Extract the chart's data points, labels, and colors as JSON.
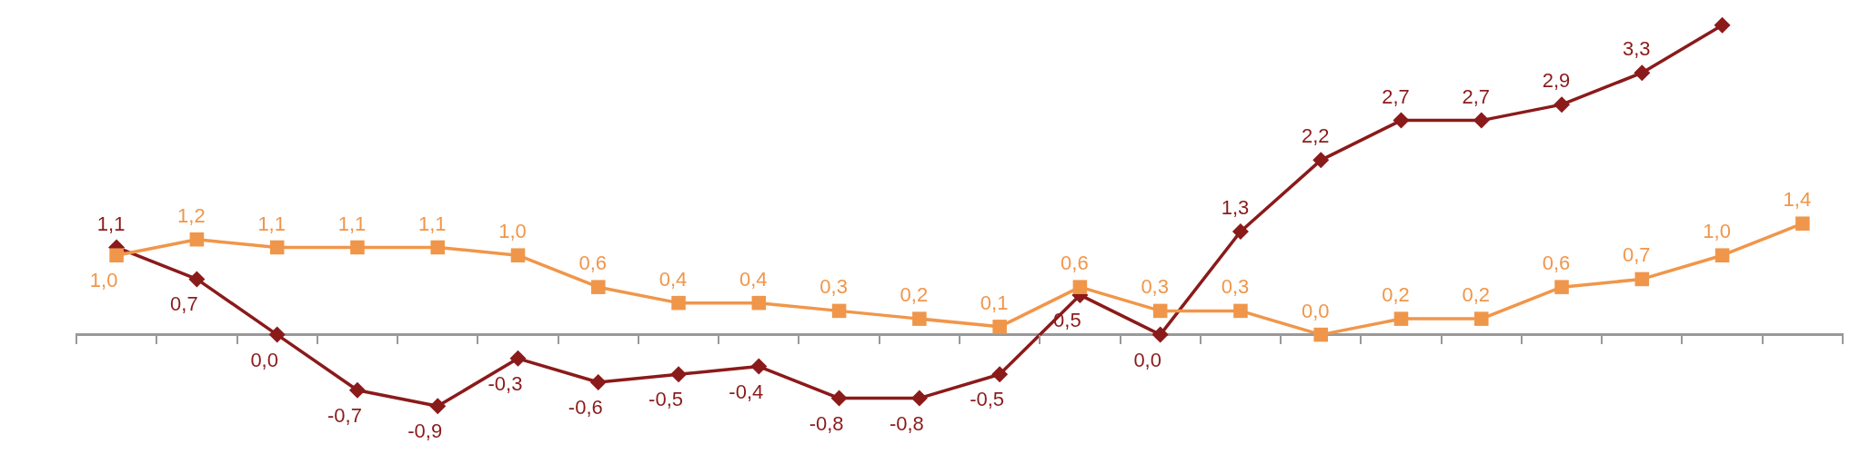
{
  "chart_data": {
    "type": "line",
    "categories": [
      null,
      null,
      null,
      null,
      null,
      null,
      null,
      null,
      null,
      null,
      null,
      null,
      null,
      null,
      null,
      null,
      null,
      null,
      null,
      null,
      null,
      null
    ],
    "legend": false,
    "line_style": "solid",
    "series": [
      {
        "color": "#f0964a",
        "marker": "square",
        "values": [
          1.0,
          1.2,
          1.1,
          1.1,
          1.1,
          1.0,
          0.6,
          0.4,
          0.4,
          0.3,
          0.2,
          0.1,
          0.6,
          0.3,
          0.3,
          0.0,
          0.2,
          0.2,
          0.6,
          0.7,
          1.0,
          1.4
        ],
        "value_labels": [
          "1,0",
          "1,2",
          "1,1",
          "1,1",
          "1,1",
          "1,0",
          "0,6",
          "0,4",
          "0,4",
          "0,3",
          "0,2",
          "0,1",
          "0,6",
          "0,3",
          "0,3",
          "0,0",
          "0,2",
          "0,2",
          "0,6",
          "0,7",
          "1,0",
          "1,4"
        ]
      },
      {
        "color": "#8b1a1a",
        "marker": "diamond",
        "values": [
          1.1,
          0.7,
          0.0,
          -0.7,
          -0.9,
          -0.3,
          -0.6,
          -0.5,
          -0.4,
          -0.8,
          -0.8,
          -0.5,
          0.5,
          0.0,
          1.3,
          2.2,
          2.7,
          2.7,
          2.9,
          3.3,
          3.9,
          null
        ],
        "value_labels": [
          "1,1",
          "0,7",
          "0,0",
          "-0,7",
          "-0,9",
          "-0,3",
          "-0,6",
          "-0,5",
          "-0,4",
          "-0,8",
          "-0,8",
          "-0,5",
          "0,5",
          "0,0",
          "1,3",
          "2,2",
          "2,7",
          "2,7",
          "2,9",
          "3,3",
          null,
          null
        ]
      }
    ]
  }
}
